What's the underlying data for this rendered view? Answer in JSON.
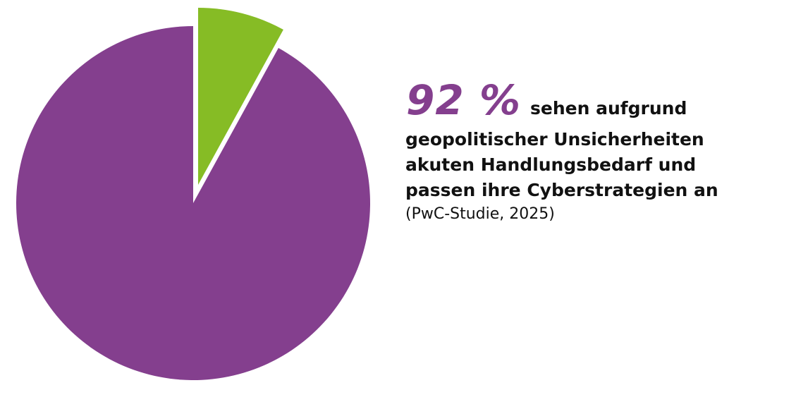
{
  "chart_data": {
    "type": "pie",
    "slices": [
      {
        "value": 92,
        "color": "#843f8e"
      },
      {
        "value": 8,
        "color": "#86bc25",
        "exploded": true
      }
    ],
    "start_angle": "top",
    "direction": "counterclockwise for main slice, highlighted slice at top-right"
  },
  "headline": {
    "percent": "92 %",
    "percent_color": "#843f8e",
    "lines": [
      "sehen aufgrund",
      "geopolitischer Unsicherheiten",
      "akuten Handlungsbedarf und",
      "passen ihre Cyberstrategien an"
    ],
    "source": "(PwC-Studie, 2025)"
  }
}
